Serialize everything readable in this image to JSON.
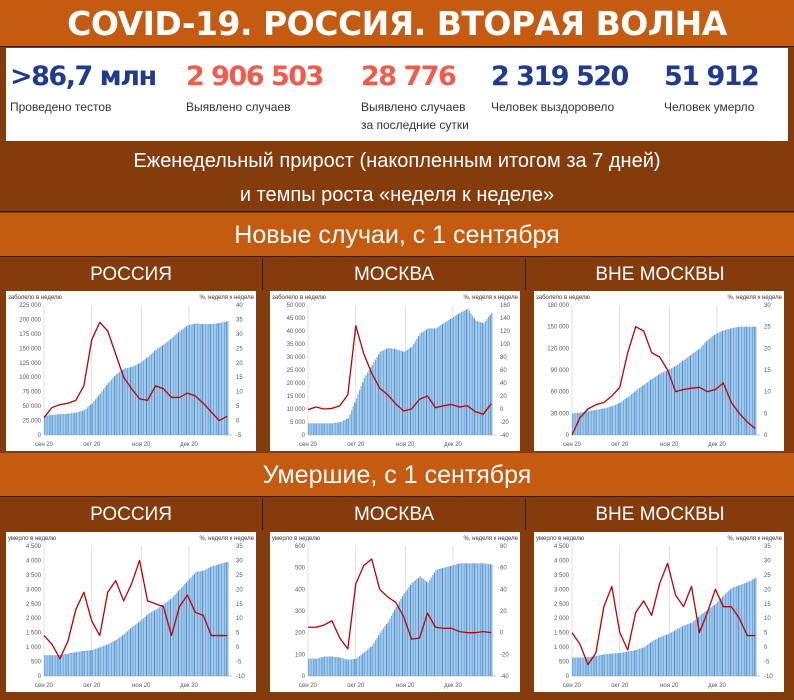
{
  "title": "COVID-19. РОССИЯ. ВТОРАЯ ВОЛНА",
  "stats": [
    {
      "value": ">86,7 млн",
      "label": "Проведено тестов",
      "color": "#1f3a8f"
    },
    {
      "value": "2 906 503",
      "label": "Выявлено случаев",
      "color": "#f25a4a"
    },
    {
      "value": "28 776",
      "label": "Выявлено случаев за последние сутки",
      "color": "#f25a4a"
    },
    {
      "value": "2 319 520",
      "label": "Человек выздоровело",
      "color": "#1f3a8f"
    },
    {
      "value": "51 912",
      "label": "Человек умерло",
      "color": "#1f3a8f"
    }
  ],
  "subtitle_line1": "Еженедельный прирост (накопленным итогом за 7 дней)",
  "subtitle_line2": "и темпы роста «неделя к неделе»",
  "sections": [
    {
      "title": "Новые случаи, с 1 сентября",
      "regions": [
        "РОССИЯ",
        "МОСКВА",
        "ВНЕ МОСКВЫ"
      ]
    },
    {
      "title": "Умершие, с 1 сентября",
      "regions": [
        "РОССИЯ",
        "МОСКВА",
        "ВНЕ МОСКВЫ"
      ]
    }
  ],
  "colors": {
    "orange": "#c55a11",
    "brown": "#843c0c",
    "bars": "#5b9bd5",
    "line": "#c00000"
  },
  "chart_data": [
    {
      "type": "bar+line",
      "ylabel": "заболело в неделю",
      "y2label": "%, неделя к неделе",
      "ylim": [
        0,
        225000
      ],
      "y2lim": [
        -5,
        40
      ],
      "yticks": [
        "0",
        "25 000",
        "50 000",
        "75 000",
        "100 000",
        "125 000",
        "150 000",
        "175 000",
        "200 000",
        "225 000"
      ],
      "y2ticks": [
        "-5",
        "0",
        "5",
        "10",
        "15",
        "20",
        "25",
        "30",
        "35",
        "40"
      ],
      "xticks": [
        {
          "date": "2020-09-01",
          "label": "сен 20"
        },
        {
          "date": "2020-10-01",
          "label": "окт 20"
        },
        {
          "date": "2020-11-01",
          "label": "ноя 20"
        },
        {
          "date": "2020-12-01",
          "label": "дек 20"
        }
      ],
      "x": [
        "2020-09-01",
        "2020-09-06",
        "2020-09-11",
        "2020-09-16",
        "2020-09-21",
        "2020-09-26",
        "2020-10-01",
        "2020-10-06",
        "2020-10-11",
        "2020-10-16",
        "2020-10-21",
        "2020-10-26",
        "2020-10-31",
        "2020-11-05",
        "2020-11-10",
        "2020-11-15",
        "2020-11-20",
        "2020-11-25",
        "2020-11-30",
        "2020-12-05",
        "2020-12-10",
        "2020-12-15",
        "2020-12-20",
        "2020-12-25"
      ],
      "bars": [
        33000,
        35000,
        36000,
        37000,
        39000,
        43000,
        55000,
        72000,
        90000,
        105000,
        115000,
        118000,
        125000,
        135000,
        148000,
        157000,
        168000,
        180000,
        190000,
        193000,
        192000,
        192000,
        194000,
        197000
      ],
      "line": [
        1,
        4.5,
        5.5,
        6,
        7,
        12,
        28,
        34,
        31,
        23,
        15,
        11,
        7.5,
        7,
        12,
        11,
        8,
        8,
        9.5,
        8.5,
        6,
        3,
        0,
        1.5
      ]
    },
    {
      "type": "bar+line",
      "ylabel": "заболело в неделю",
      "y2label": "%, неделя к неделе",
      "ylim": [
        0,
        50000
      ],
      "y2lim": [
        -40,
        160
      ],
      "yticks": [
        "0",
        "5 000",
        "10 000",
        "15 000",
        "20 000",
        "25 000",
        "30 000",
        "35 000",
        "40 000",
        "45 000",
        "50 000"
      ],
      "y2ticks": [
        "-40",
        "-20",
        "0",
        "20",
        "40",
        "60",
        "80",
        "100",
        "120",
        "140",
        "160"
      ],
      "xticks": [
        {
          "date": "2020-09-01",
          "label": "сен 20"
        },
        {
          "date": "2020-10-01",
          "label": "окт 20"
        },
        {
          "date": "2020-11-01",
          "label": "ноя 20"
        },
        {
          "date": "2020-12-01",
          "label": "дек 20"
        }
      ],
      "x": [
        "2020-09-01",
        "2020-09-06",
        "2020-09-11",
        "2020-09-16",
        "2020-09-21",
        "2020-09-26",
        "2020-10-01",
        "2020-10-06",
        "2020-10-11",
        "2020-10-16",
        "2020-10-21",
        "2020-10-26",
        "2020-10-31",
        "2020-11-05",
        "2020-11-10",
        "2020-11-15",
        "2020-11-20",
        "2020-11-25",
        "2020-11-30",
        "2020-12-05",
        "2020-12-10",
        "2020-12-15",
        "2020-12-20",
        "2020-12-25"
      ],
      "bars": [
        4500,
        4500,
        4500,
        4500,
        5000,
        6500,
        14000,
        22000,
        27000,
        32000,
        33500,
        33000,
        32000,
        34000,
        39000,
        41000,
        41000,
        43000,
        45000,
        47000,
        48500,
        44000,
        43000,
        47000
      ],
      "line": [
        -1,
        3,
        0,
        1,
        5,
        22,
        128,
        85,
        55,
        32,
        22,
        8,
        -3,
        0,
        15,
        20,
        2,
        5,
        7,
        3,
        5,
        -4,
        -8,
        8
      ]
    },
    {
      "type": "bar+line",
      "ylabel": "заболело в неделю",
      "y2label": "%, неделя к неделе",
      "ylim": [
        0,
        180000
      ],
      "y2lim": [
        0,
        30
      ],
      "yticks": [
        "0",
        "30 000",
        "60 000",
        "90 000",
        "120 000",
        "150 000",
        "180 000"
      ],
      "y2ticks": [
        "0",
        "5",
        "10",
        "15",
        "20",
        "25",
        "30"
      ],
      "xticks": [
        {
          "date": "2020-09-01",
          "label": "сен 20"
        },
        {
          "date": "2020-10-01",
          "label": "окт 20"
        },
        {
          "date": "2020-11-01",
          "label": "ноя 20"
        },
        {
          "date": "2020-12-01",
          "label": "дек 20"
        }
      ],
      "x": [
        "2020-09-01",
        "2020-09-06",
        "2020-09-11",
        "2020-09-16",
        "2020-09-21",
        "2020-09-26",
        "2020-10-01",
        "2020-10-06",
        "2020-10-11",
        "2020-10-16",
        "2020-10-21",
        "2020-10-26",
        "2020-10-31",
        "2020-11-05",
        "2020-11-10",
        "2020-11-15",
        "2020-11-20",
        "2020-11-25",
        "2020-11-30",
        "2020-12-05",
        "2020-12-10",
        "2020-12-15",
        "2020-12-20",
        "2020-12-25"
      ],
      "bars": [
        30000,
        31000,
        33000,
        35000,
        37000,
        40000,
        45000,
        53000,
        62000,
        70000,
        78000,
        85000,
        90000,
        96000,
        104000,
        112000,
        120000,
        132000,
        140000,
        145000,
        148000,
        150000,
        150000,
        150000
      ],
      "line": [
        0,
        4,
        6,
        7,
        7.5,
        9,
        11,
        19,
        25,
        24,
        19,
        18,
        15,
        10,
        10.5,
        10.8,
        11,
        10,
        10.5,
        12,
        7.5,
        5,
        3,
        1.5
      ]
    },
    {
      "type": "bar+line",
      "ylabel": "умерло в неделю",
      "y2label": "%, неделя к неделе",
      "ylim": [
        0,
        4500
      ],
      "y2lim": [
        -10,
        35
      ],
      "yticks": [
        "0",
        "500",
        "1 000",
        "1 500",
        "2 000",
        "2 500",
        "3 000",
        "3 500",
        "4 000",
        "4 500"
      ],
      "y2ticks": [
        "-10",
        "-5",
        "0",
        "5",
        "10",
        "15",
        "20",
        "25",
        "30",
        "35"
      ],
      "xticks": [
        {
          "date": "2020-09-01",
          "label": "сен 20"
        },
        {
          "date": "2020-10-01",
          "label": "окт 20"
        },
        {
          "date": "2020-11-01",
          "label": "ноя 20"
        },
        {
          "date": "2020-12-01",
          "label": "дек 20"
        }
      ],
      "x": [
        "2020-09-01",
        "2020-09-06",
        "2020-09-11",
        "2020-09-16",
        "2020-09-21",
        "2020-09-26",
        "2020-10-01",
        "2020-10-06",
        "2020-10-11",
        "2020-10-16",
        "2020-10-21",
        "2020-10-26",
        "2020-10-31",
        "2020-11-05",
        "2020-11-10",
        "2020-11-15",
        "2020-11-20",
        "2020-11-25",
        "2020-11-30",
        "2020-12-05",
        "2020-12-10",
        "2020-12-15",
        "2020-12-20",
        "2020-12-25"
      ],
      "bars": [
        720,
        720,
        730,
        780,
        830,
        870,
        900,
        1000,
        1100,
        1250,
        1450,
        1700,
        1900,
        2150,
        2300,
        2500,
        2700,
        3000,
        3300,
        3600,
        3650,
        3800,
        3880,
        3950
      ],
      "line": [
        4,
        1,
        -4,
        2,
        13,
        19,
        9,
        4,
        19,
        23,
        16,
        22,
        30,
        16,
        15,
        14,
        4,
        14,
        18,
        12,
        11,
        4,
        4,
        4
      ]
    },
    {
      "type": "bar+line",
      "ylabel": "умерло в неделю",
      "y2label": "%, неделя к неделе",
      "ylim": [
        0,
        600
      ],
      "y2lim": [
        -40,
        80
      ],
      "yticks": [
        "0",
        "100",
        "200",
        "300",
        "400",
        "500",
        "600"
      ],
      "y2ticks": [
        "-40",
        "-20",
        "0",
        "20",
        "40",
        "60",
        "80"
      ],
      "xticks": [
        {
          "date": "2020-09-01",
          "label": "сен 20"
        },
        {
          "date": "2020-10-01",
          "label": "окт 20"
        },
        {
          "date": "2020-11-01",
          "label": "ноя 20"
        },
        {
          "date": "2020-12-01",
          "label": "дек 20"
        }
      ],
      "x": [
        "2020-09-01",
        "2020-09-06",
        "2020-09-11",
        "2020-09-16",
        "2020-09-21",
        "2020-09-26",
        "2020-10-01",
        "2020-10-06",
        "2020-10-11",
        "2020-10-16",
        "2020-10-21",
        "2020-10-26",
        "2020-10-31",
        "2020-11-05",
        "2020-11-10",
        "2020-11-15",
        "2020-11-20",
        "2020-11-25",
        "2020-11-30",
        "2020-12-05",
        "2020-12-10",
        "2020-12-15",
        "2020-12-20",
        "2020-12-25"
      ],
      "bars": [
        80,
        80,
        90,
        90,
        85,
        75,
        80,
        110,
        140,
        200,
        250,
        320,
        380,
        430,
        460,
        430,
        490,
        500,
        510,
        520,
        520,
        520,
        520,
        515
      ],
      "line": [
        5,
        5,
        7,
        11,
        -5,
        -15,
        45,
        62,
        68,
        40,
        33,
        28,
        15,
        -6,
        -5,
        18,
        5,
        4,
        4,
        1,
        0,
        0,
        1,
        0
      ]
    },
    {
      "type": "bar+line",
      "ylabel": "умерло в неделю",
      "y2label": "%, неделя к неделе",
      "ylim": [
        0,
        4500
      ],
      "y2lim": [
        -10,
        35
      ],
      "yticks": [
        "0",
        "500",
        "1 000",
        "1 500",
        "2 000",
        "2 500",
        "3 000",
        "3 500",
        "4 000",
        "4 500"
      ],
      "y2ticks": [
        "-10",
        "-5",
        "0",
        "5",
        "10",
        "15",
        "20",
        "25",
        "30",
        "35"
      ],
      "xticks": [
        {
          "date": "2020-09-01",
          "label": "сен 20"
        },
        {
          "date": "2020-10-01",
          "label": "окт 20"
        },
        {
          "date": "2020-11-01",
          "label": "ноя 20"
        },
        {
          "date": "2020-12-01",
          "label": "дек 20"
        }
      ],
      "x": [
        "2020-09-01",
        "2020-09-06",
        "2020-09-11",
        "2020-09-16",
        "2020-09-21",
        "2020-09-26",
        "2020-10-01",
        "2020-10-06",
        "2020-10-11",
        "2020-10-16",
        "2020-10-21",
        "2020-10-26",
        "2020-10-31",
        "2020-11-05",
        "2020-11-10",
        "2020-11-15",
        "2020-11-20",
        "2020-11-25",
        "2020-11-30",
        "2020-12-05",
        "2020-12-10",
        "2020-12-15",
        "2020-12-20",
        "2020-12-25"
      ],
      "bars": [
        640,
        640,
        650,
        700,
        750,
        780,
        800,
        850,
        900,
        1000,
        1200,
        1350,
        1450,
        1600,
        1750,
        1850,
        2100,
        2300,
        2500,
        2800,
        3050,
        3150,
        3250,
        3400
      ],
      "line": [
        5,
        1,
        -6,
        -2,
        14,
        21,
        5,
        -1,
        12,
        16,
        11,
        22,
        29,
        18,
        14,
        21,
        5,
        12,
        20,
        14,
        14,
        10,
        4,
        4
      ]
    }
  ]
}
